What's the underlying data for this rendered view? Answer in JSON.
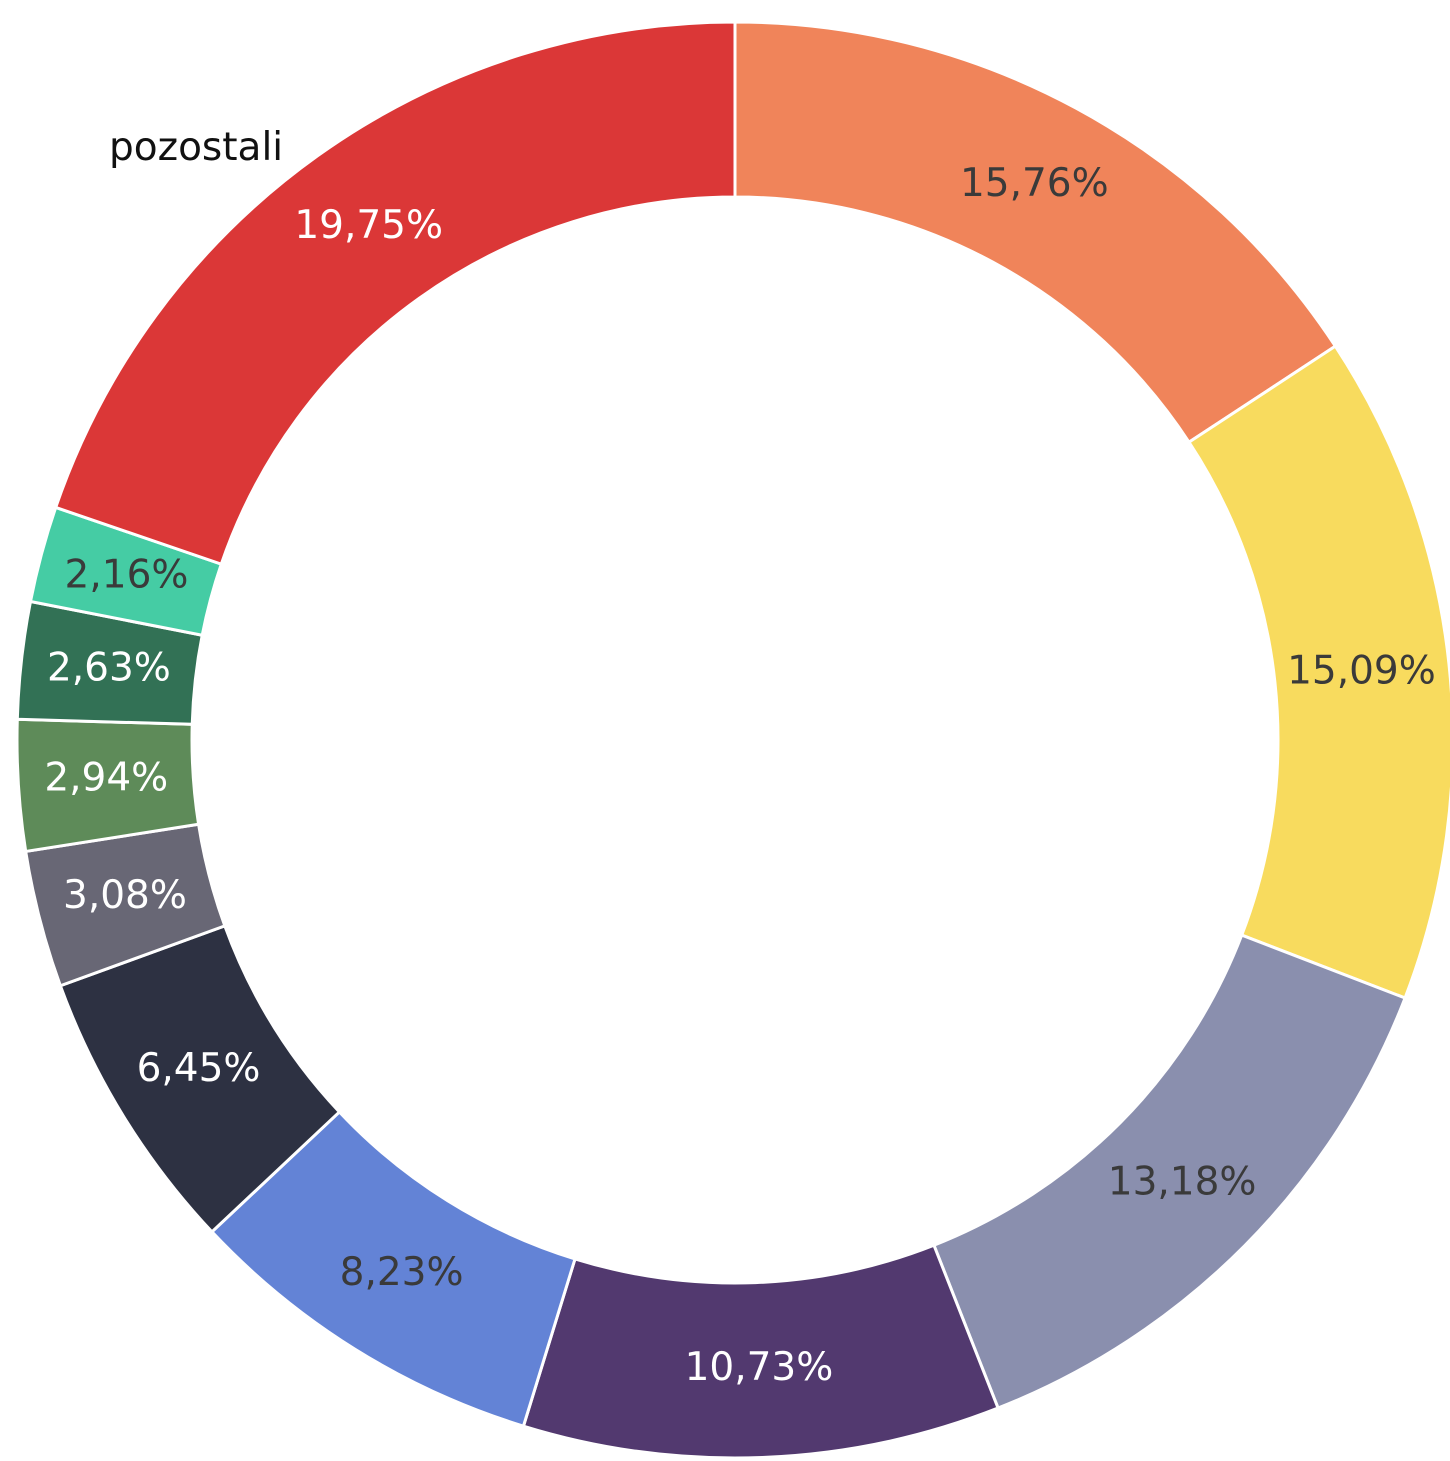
{
  "chart_data": {
    "type": "donut",
    "categories": [
      null,
      null,
      null,
      null,
      null,
      null,
      null,
      null,
      null,
      null,
      "pozostali"
    ],
    "values": [
      15.76,
      15.09,
      13.18,
      10.73,
      8.23,
      6.45,
      3.08,
      2.94,
      2.63,
      2.16,
      19.75
    ],
    "value_labels": [
      "15,76%",
      "15,09%",
      "13,18%",
      "10,73%",
      "8,23%",
      "6,45%",
      "3,08%",
      "2,94%",
      "2,63%",
      "2,16%",
      "19,75%"
    ],
    "colors": [
      "#f0845a",
      "#f8db5e",
      "#8a8fae",
      "#52396f",
      "#6383d6",
      "#2d3142",
      "#686775",
      "#5e8b59",
      "#327155",
      "#45cca4",
      "#db3737"
    ]
  }
}
